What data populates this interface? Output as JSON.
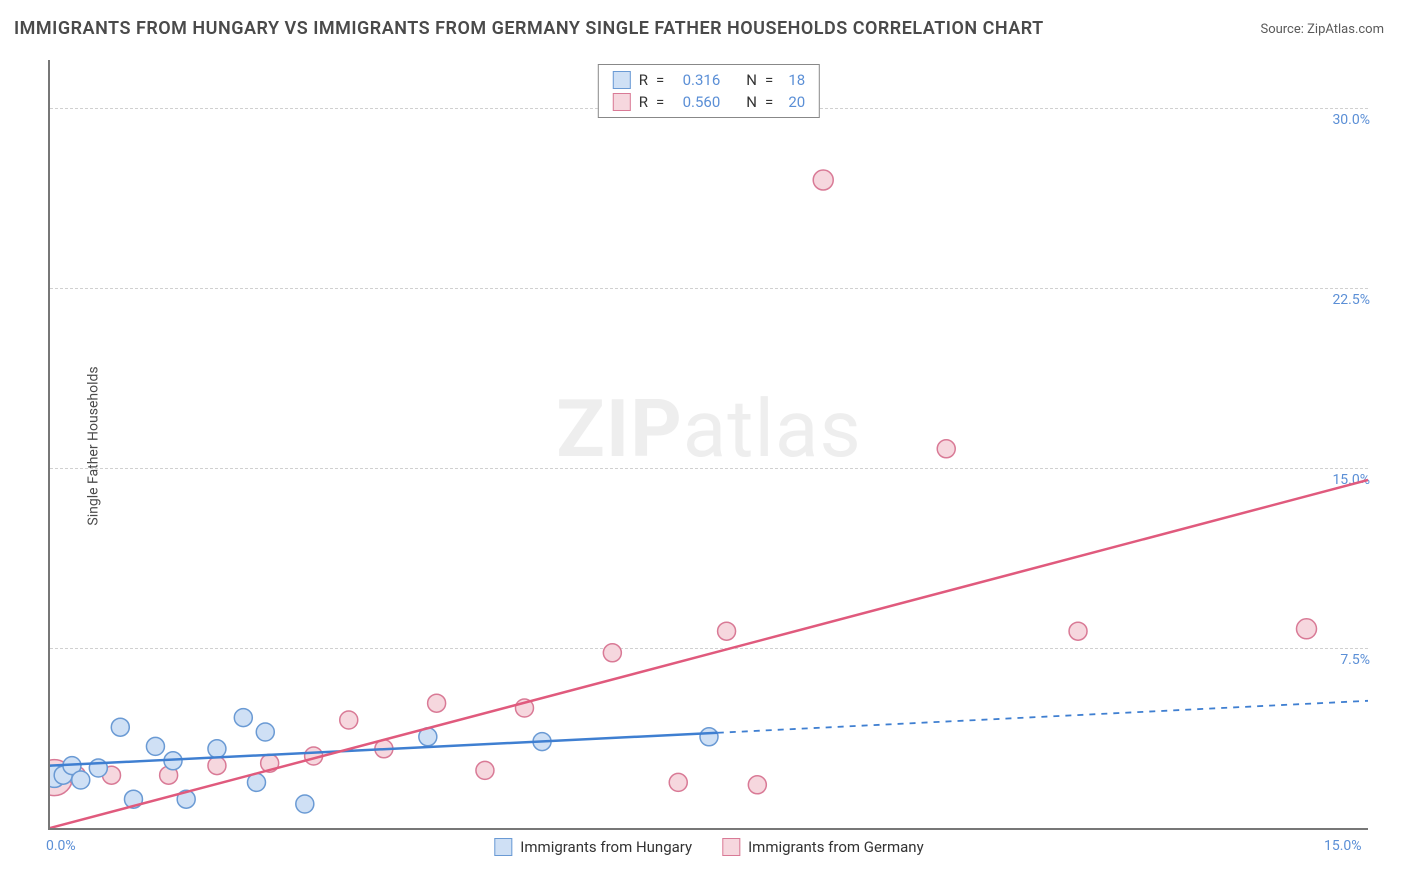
{
  "title": "IMMIGRANTS FROM HUNGARY VS IMMIGRANTS FROM GERMANY SINGLE FATHER HOUSEHOLDS CORRELATION CHART",
  "source_label": "Source: ",
  "source_site": "ZipAtlas.com",
  "y_axis_label": "Single Father Households",
  "watermark_bold": "ZIP",
  "watermark_rest": "atlas",
  "chart": {
    "type": "scatter",
    "x_min": 0.0,
    "x_max": 15.0,
    "y_min": 0.0,
    "y_max": 32.0,
    "x_ticks": [
      {
        "v": 0.0,
        "label": "0.0%"
      },
      {
        "v": 15.0,
        "label": "15.0%"
      }
    ],
    "y_ticks": [
      {
        "v": 30.0,
        "label": "30.0%"
      },
      {
        "v": 22.5,
        "label": "22.5%"
      },
      {
        "v": 15.0,
        "label": "15.0%"
      },
      {
        "v": 7.5,
        "label": "7.5%"
      }
    ],
    "gridlines_y": [
      30.0,
      22.5,
      15.0,
      7.5
    ],
    "background_color": "#ffffff",
    "grid_color": "#d0d0d0",
    "axis_color": "#777777",
    "tick_label_color": "#5b8fd6",
    "series": [
      {
        "name": "Immigrants from Hungary",
        "marker_fill": "#cfe0f5",
        "marker_stroke": "#6a9ad4",
        "line_color": "#3f7fd1",
        "r_value": "0.316",
        "n_value": "18",
        "marker_r": 9,
        "line": {
          "x1": 0.0,
          "y1": 2.6,
          "x2": 15.0,
          "y2": 5.3,
          "solid_until_x": 7.6
        },
        "points": [
          {
            "x": 0.05,
            "y": 2.15,
            "r": 11
          },
          {
            "x": 0.15,
            "y": 2.2,
            "r": 9
          },
          {
            "x": 0.25,
            "y": 2.6,
            "r": 9
          },
          {
            "x": 0.35,
            "y": 2.0,
            "r": 9
          },
          {
            "x": 0.55,
            "y": 2.5,
            "r": 9
          },
          {
            "x": 0.8,
            "y": 4.2,
            "r": 9
          },
          {
            "x": 0.95,
            "y": 1.2,
            "r": 9
          },
          {
            "x": 1.2,
            "y": 3.4,
            "r": 9
          },
          {
            "x": 1.4,
            "y": 2.8,
            "r": 9
          },
          {
            "x": 1.55,
            "y": 1.2,
            "r": 9
          },
          {
            "x": 1.9,
            "y": 3.3,
            "r": 9
          },
          {
            "x": 2.2,
            "y": 4.6,
            "r": 9
          },
          {
            "x": 2.35,
            "y": 1.9,
            "r": 9
          },
          {
            "x": 2.45,
            "y": 4.0,
            "r": 9
          },
          {
            "x": 2.9,
            "y": 1.0,
            "r": 9
          },
          {
            "x": 4.3,
            "y": 3.8,
            "r": 9
          },
          {
            "x": 5.6,
            "y": 3.6,
            "r": 9
          },
          {
            "x": 7.5,
            "y": 3.8,
            "r": 9
          }
        ]
      },
      {
        "name": "Immigrants from Germany",
        "marker_fill": "#f6d7de",
        "marker_stroke": "#d97a96",
        "line_color": "#e05a7d",
        "r_value": "0.560",
        "n_value": "20",
        "marker_r": 9,
        "line": {
          "x1": 0.0,
          "y1": 0.0,
          "x2": 15.0,
          "y2": 14.5,
          "solid_until_x": 15.0
        },
        "points": [
          {
            "x": 0.05,
            "y": 2.1,
            "r": 18
          },
          {
            "x": 0.3,
            "y": 2.2,
            "r": 9
          },
          {
            "x": 0.7,
            "y": 2.2,
            "r": 9
          },
          {
            "x": 1.35,
            "y": 2.2,
            "r": 9
          },
          {
            "x": 1.9,
            "y": 2.6,
            "r": 9
          },
          {
            "x": 2.5,
            "y": 2.7,
            "r": 9
          },
          {
            "x": 3.0,
            "y": 3.0,
            "r": 9
          },
          {
            "x": 3.4,
            "y": 4.5,
            "r": 9
          },
          {
            "x": 3.8,
            "y": 3.3,
            "r": 9
          },
          {
            "x": 4.4,
            "y": 5.2,
            "r": 9
          },
          {
            "x": 4.95,
            "y": 2.4,
            "r": 9
          },
          {
            "x": 5.4,
            "y": 5.0,
            "r": 9
          },
          {
            "x": 6.4,
            "y": 7.3,
            "r": 9
          },
          {
            "x": 7.15,
            "y": 1.9,
            "r": 9
          },
          {
            "x": 7.7,
            "y": 8.2,
            "r": 9
          },
          {
            "x": 8.05,
            "y": 1.8,
            "r": 9
          },
          {
            "x": 8.8,
            "y": 27.0,
            "r": 10
          },
          {
            "x": 10.2,
            "y": 15.8,
            "r": 9
          },
          {
            "x": 11.7,
            "y": 8.2,
            "r": 9
          },
          {
            "x": 14.3,
            "y": 8.3,
            "r": 10
          }
        ]
      }
    ],
    "legend_top": {
      "r_label": "R",
      "n_label": "N",
      "equals": "="
    },
    "legend_bottom_labels": [
      "Immigrants from Hungary",
      "Immigrants from Germany"
    ]
  }
}
